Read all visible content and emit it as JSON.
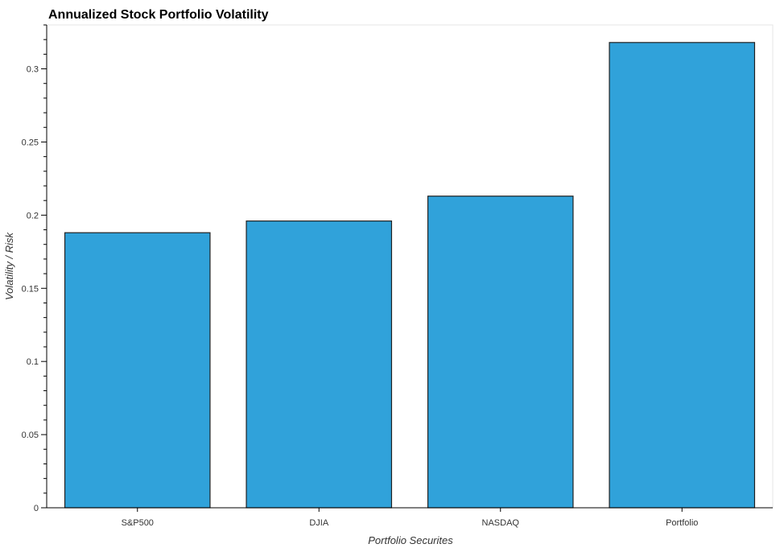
{
  "chart_data": {
    "type": "bar",
    "title": "Annualized Stock Portfolio Volatility",
    "xlabel": "Portfolio Securites",
    "ylabel": "Volatility / Risk",
    "categories": [
      "S&P500",
      "DJIA",
      "NASDAQ",
      "Portfolio"
    ],
    "values": [
      0.188,
      0.196,
      0.213,
      0.318
    ],
    "ylim": [
      0,
      0.33
    ],
    "yticks": [
      0,
      0.05,
      0.1,
      0.15,
      0.2,
      0.25,
      0.3
    ],
    "ytick_labels": [
      "0",
      "0.05",
      "0.1",
      "0.15",
      "0.2",
      "0.25",
      "0.3"
    ],
    "grid": false,
    "bar_color": "#30a2da",
    "bar_edge_color": "#222222"
  }
}
